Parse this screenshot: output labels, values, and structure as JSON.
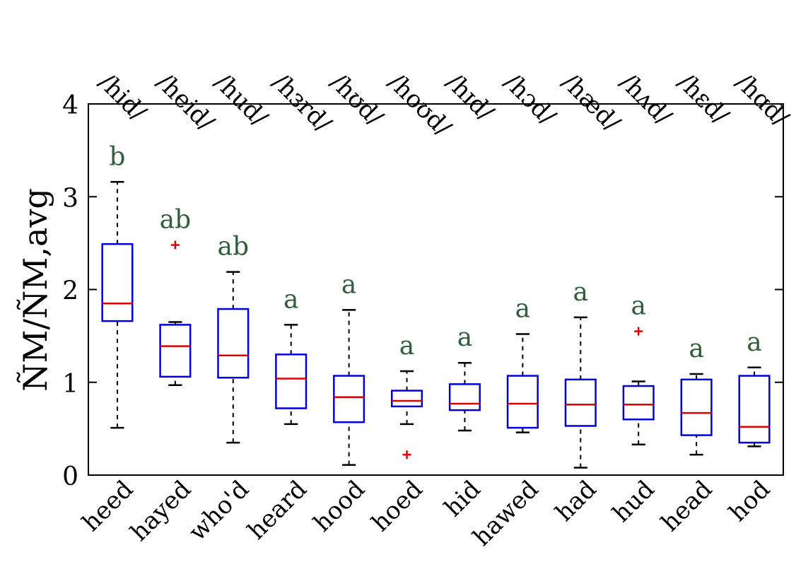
{
  "chart_data": {
    "type": "box",
    "categories": [
      "heed",
      "hayed",
      "who'd",
      "heard",
      "hood",
      "hoed",
      "hid",
      "hawed",
      "had",
      "hud",
      "head",
      "hod"
    ],
    "ipa_labels": [
      "/hid/",
      "/heid/",
      "/hud/",
      "/hɜrd/",
      "/hʊd/",
      "/hoʊd/",
      "/hɪd/",
      "/hɔd/",
      "/hæd/",
      "/hʌd/",
      "/hɛd/",
      "/hɑd/"
    ],
    "ylabel": "ÑM/ÑM,avg",
    "ylim": [
      0,
      4
    ],
    "yticks": [
      0,
      1,
      2,
      3,
      4
    ],
    "grid": false,
    "boxes": [
      {
        "category": "heed",
        "whisker_low": 0.51,
        "q1": 1.66,
        "median": 1.85,
        "q3": 2.49,
        "whisker_high": 3.16,
        "outliers": [],
        "group": "b"
      },
      {
        "category": "hayed",
        "whisker_low": 0.97,
        "q1": 1.06,
        "median": 1.39,
        "q3": 1.62,
        "whisker_high": 1.65,
        "outliers": [
          2.48
        ],
        "group": "ab"
      },
      {
        "category": "who'd",
        "whisker_low": 0.35,
        "q1": 1.05,
        "median": 1.29,
        "q3": 1.79,
        "whisker_high": 2.19,
        "outliers": [],
        "group": "ab"
      },
      {
        "category": "heard",
        "whisker_low": 0.55,
        "q1": 0.72,
        "median": 1.04,
        "q3": 1.3,
        "whisker_high": 1.62,
        "outliers": [],
        "group": "a"
      },
      {
        "category": "hood",
        "whisker_low": 0.11,
        "q1": 0.57,
        "median": 0.84,
        "q3": 1.07,
        "whisker_high": 1.78,
        "outliers": [],
        "group": "a"
      },
      {
        "category": "hoed",
        "whisker_low": 0.55,
        "q1": 0.74,
        "median": 0.8,
        "q3": 0.91,
        "whisker_high": 1.12,
        "outliers": [
          0.22
        ],
        "group": "a"
      },
      {
        "category": "hid",
        "whisker_low": 0.48,
        "q1": 0.7,
        "median": 0.77,
        "q3": 0.98,
        "whisker_high": 1.21,
        "outliers": [],
        "group": "a"
      },
      {
        "category": "hawed",
        "whisker_low": 0.46,
        "q1": 0.51,
        "median": 0.77,
        "q3": 1.07,
        "whisker_high": 1.52,
        "outliers": [],
        "group": "a"
      },
      {
        "category": "had",
        "whisker_low": 0.08,
        "q1": 0.53,
        "median": 0.76,
        "q3": 1.03,
        "whisker_high": 1.7,
        "outliers": [],
        "group": "a"
      },
      {
        "category": "hud",
        "whisker_low": 0.33,
        "q1": 0.6,
        "median": 0.76,
        "q3": 0.96,
        "whisker_high": 1.01,
        "outliers": [
          1.55
        ],
        "group": "a"
      },
      {
        "category": "head",
        "whisker_low": 0.22,
        "q1": 0.43,
        "median": 0.67,
        "q3": 1.03,
        "whisker_high": 1.09,
        "outliers": [],
        "group": "a"
      },
      {
        "category": "hod",
        "whisker_low": 0.31,
        "q1": 0.35,
        "median": 0.52,
        "q3": 1.07,
        "whisker_high": 1.16,
        "outliers": [],
        "group": "a"
      }
    ],
    "colors": {
      "box": "#0000dd",
      "median": "#e00000",
      "whisker": "#000000",
      "outlier": "#e00000",
      "group_label": "#2f5e3a"
    }
  }
}
